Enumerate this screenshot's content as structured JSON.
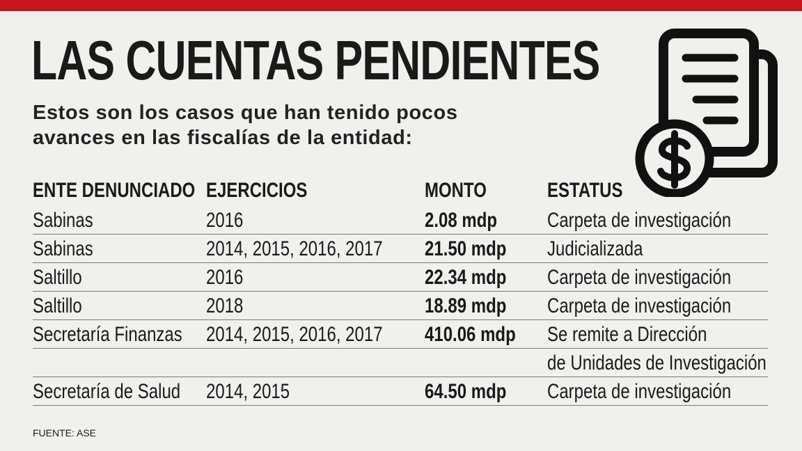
{
  "header": {
    "title": "LAS CUENTAS PENDIENTES",
    "subtitle": [
      "Estos son los casos que han tenido pocos",
      "avances en las fiscalías de la entidad:"
    ]
  },
  "table": {
    "columns": [
      "ENTE DENUNCIADO",
      "EJERCICIOS",
      "MONTO",
      "ESTATUS"
    ],
    "rows": [
      [
        "Sabinas",
        "2016",
        "2.08 mdp",
        [
          "Carpeta de investigación"
        ]
      ],
      [
        "Sabinas",
        "2014, 2015, 2016, 2017",
        "21.50 mdp",
        [
          "Judicializada"
        ]
      ],
      [
        "Saltillo",
        "2016",
        "22.34 mdp",
        [
          "Carpeta de investigación"
        ]
      ],
      [
        "Saltillo",
        "2018",
        "18.89 mdp",
        [
          "Carpeta de investigación"
        ]
      ],
      [
        "Secretaría Finanzas",
        "2014, 2015, 2016, 2017",
        "410.06 mdp",
        [
          "Se remite a Dirección",
          "de Unidades de Investigación"
        ]
      ],
      [
        "Secretaría de Salud",
        "2014, 2015",
        "64.50 mdp",
        [
          "Carpeta de investigación"
        ]
      ]
    ]
  },
  "footer": {
    "source": "FUENTE: ASE"
  }
}
